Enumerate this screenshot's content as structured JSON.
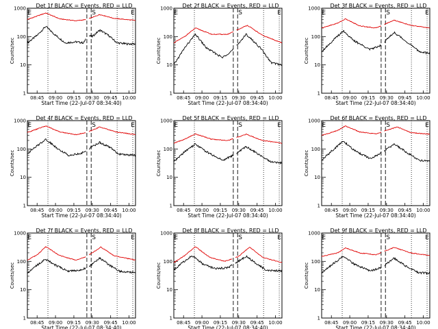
{
  "chart_data": [
    {
      "type": "line",
      "title": "Det 1f BLACK = Events, RED = LLD",
      "xlabel": "Start Time (22-Jul-07 08:34:40)",
      "ylabel": "Counts/sec",
      "x_ticks": [
        "08:45",
        "09:00",
        "09:15",
        "09:30",
        "09:45",
        "10:00"
      ],
      "y_ticks": [
        "1",
        "10",
        "100",
        "1000"
      ],
      "ylim": [
        1,
        1000
      ],
      "yscale": "log",
      "markers": [
        "E",
        "S",
        "E"
      ],
      "grid": false,
      "series": [
        {
          "name": "BLACK",
          "color": "#000000",
          "key": [
            [
              0,
              60
            ],
            [
              0.09,
              110
            ],
            [
              0.17,
              230
            ],
            [
              0.25,
              120
            ],
            [
              0.35,
              60
            ],
            [
              0.45,
              65
            ],
            [
              0.52,
              60
            ],
            [
              0.56,
              110
            ],
            [
              0.6,
              100
            ],
            [
              0.67,
              170
            ],
            [
              0.75,
              110
            ],
            [
              0.83,
              60
            ],
            [
              0.92,
              55
            ],
            [
              1,
              55
            ]
          ],
          "gap": [
            0.54,
            0.57
          ]
        },
        {
          "name": "RED",
          "color": "#e00000",
          "key": [
            [
              0,
              400
            ],
            [
              0.17,
              680
            ],
            [
              0.3,
              420
            ],
            [
              0.45,
              360
            ],
            [
              0.55,
              400
            ],
            [
              0.67,
              600
            ],
            [
              0.8,
              440
            ],
            [
              1,
              370
            ]
          ],
          "gap": [
            0.54,
            0.57
          ]
        }
      ]
    },
    {
      "type": "line",
      "title": "Det 2f BLACK = Events, RED = LLD",
      "xlabel": "Start Time (22-Jul-07 08:34:40)",
      "ylabel": "Counts/sec",
      "x_ticks": [
        "08:45",
        "09:00",
        "09:15",
        "09:30",
        "09:45",
        "10:00"
      ],
      "y_ticks": [
        "1",
        "10",
        "100",
        "1000"
      ],
      "ylim": [
        1,
        1000
      ],
      "yscale": "log",
      "markers": [
        "E",
        "S",
        "E"
      ],
      "grid": false,
      "series": [
        {
          "name": "BLACK",
          "color": "#000000",
          "key": [
            [
              0,
              10
            ],
            [
              0.1,
              40
            ],
            [
              0.2,
              120
            ],
            [
              0.3,
              40
            ],
            [
              0.45,
              18
            ],
            [
              0.55,
              35
            ],
            [
              0.67,
              120
            ],
            [
              0.8,
              40
            ],
            [
              0.9,
              12
            ],
            [
              1,
              10
            ]
          ],
          "gap": [
            0.55,
            0.58
          ]
        },
        {
          "name": "RED",
          "color": "#e00000",
          "key": [
            [
              0,
              60
            ],
            [
              0.1,
              100
            ],
            [
              0.2,
              200
            ],
            [
              0.35,
              120
            ],
            [
              0.5,
              120
            ],
            [
              0.68,
              250
            ],
            [
              0.82,
              110
            ],
            [
              1,
              60
            ]
          ],
          "gap": [
            0.55,
            0.58
          ]
        }
      ]
    },
    {
      "type": "line",
      "title": "Det 3f BLACK = Events, RED = LLD",
      "xlabel": "Start Time (22-Jul-07 08:34:40)",
      "ylabel": "Counts/sec",
      "x_ticks": [
        "08:45",
        "09:00",
        "09:15",
        "09:30",
        "09:45",
        "10:00"
      ],
      "y_ticks": [
        "1",
        "10",
        "100",
        "1000"
      ],
      "ylim": [
        1,
        1000
      ],
      "yscale": "log",
      "markers": [
        "E",
        "S",
        "E"
      ],
      "grid": false,
      "series": [
        {
          "name": "BLACK",
          "color": "#000000",
          "key": [
            [
              0,
              30
            ],
            [
              0.1,
              70
            ],
            [
              0.2,
              160
            ],
            [
              0.3,
              70
            ],
            [
              0.45,
              35
            ],
            [
              0.55,
              50
            ],
            [
              0.67,
              140
            ],
            [
              0.8,
              60
            ],
            [
              0.9,
              30
            ],
            [
              1,
              25
            ]
          ],
          "gap": [
            0.55,
            0.58
          ]
        },
        {
          "name": "RED",
          "color": "#e00000",
          "key": [
            [
              0,
              200
            ],
            [
              0.15,
              300
            ],
            [
              0.22,
              420
            ],
            [
              0.35,
              240
            ],
            [
              0.5,
              200
            ],
            [
              0.67,
              380
            ],
            [
              0.82,
              250
            ],
            [
              1,
              200
            ]
          ],
          "gap": [
            0.55,
            0.58
          ]
        }
      ]
    },
    {
      "type": "line",
      "title": "Det 4f BLACK = Events, RED = LLD",
      "xlabel": "Start Time (22-Jul-07 08:34:40)",
      "ylabel": "Counts/sec",
      "x_ticks": [
        "08:45",
        "09:00",
        "09:15",
        "09:30",
        "09:45",
        "10:00"
      ],
      "y_ticks": [
        "1",
        "10",
        "100",
        "1000"
      ],
      "ylim": [
        1,
        1000
      ],
      "yscale": "log",
      "markers": [
        "E",
        "S",
        "E"
      ],
      "grid": false,
      "series": [
        {
          "name": "BLACK",
          "color": "#000000",
          "key": [
            [
              0,
              70
            ],
            [
              0.08,
              120
            ],
            [
              0.17,
              220
            ],
            [
              0.27,
              110
            ],
            [
              0.38,
              60
            ],
            [
              0.5,
              70
            ],
            [
              0.58,
              110
            ],
            [
              0.67,
              170
            ],
            [
              0.77,
              110
            ],
            [
              0.85,
              65
            ],
            [
              1,
              60
            ]
          ],
          "gap": [
            0.54,
            0.57
          ]
        },
        {
          "name": "RED",
          "color": "#e00000",
          "key": [
            [
              0,
              380
            ],
            [
              0.17,
              650
            ],
            [
              0.3,
              400
            ],
            [
              0.45,
              320
            ],
            [
              0.55,
              380
            ],
            [
              0.67,
              600
            ],
            [
              0.82,
              400
            ],
            [
              1,
              320
            ]
          ],
          "gap": [
            0.54,
            0.57
          ]
        }
      ]
    },
    {
      "type": "line",
      "title": "Det 5f BLACK = Events, RED = LLD",
      "xlabel": "Start Time (22-Jul-07 08:34:40)",
      "ylabel": "Counts/sec",
      "x_ticks": [
        "08:45",
        "09:00",
        "09:15",
        "09:30",
        "09:45",
        "10:00"
      ],
      "y_ticks": [
        "1",
        "10",
        "100",
        "1000"
      ],
      "ylim": [
        1,
        1000
      ],
      "yscale": "log",
      "markers": [
        "E",
        "S",
        "E"
      ],
      "grid": false,
      "series": [
        {
          "name": "BLACK",
          "color": "#000000",
          "key": [
            [
              0,
              35
            ],
            [
              0.1,
              80
            ],
            [
              0.2,
              150
            ],
            [
              0.3,
              80
            ],
            [
              0.45,
              40
            ],
            [
              0.55,
              60
            ],
            [
              0.67,
              120
            ],
            [
              0.8,
              60
            ],
            [
              0.9,
              35
            ],
            [
              1,
              32
            ]
          ],
          "gap": [
            0.55,
            0.58
          ]
        },
        {
          "name": "RED",
          "color": "#e00000",
          "key": [
            [
              0,
              160
            ],
            [
              0.1,
              220
            ],
            [
              0.2,
              340
            ],
            [
              0.35,
              220
            ],
            [
              0.5,
              200
            ],
            [
              0.67,
              330
            ],
            [
              0.82,
              200
            ],
            [
              1,
              160
            ]
          ],
          "gap": [
            0.55,
            0.58
          ]
        }
      ]
    },
    {
      "type": "line",
      "title": "Det 6f BLACK = Events, RED = LLD",
      "xlabel": "Start Time (22-Jul-07 08:34:40)",
      "ylabel": "Counts/sec",
      "x_ticks": [
        "08:45",
        "09:00",
        "09:15",
        "09:30",
        "09:45",
        "10:00"
      ],
      "y_ticks": [
        "1",
        "10",
        "100",
        "1000"
      ],
      "ylim": [
        1,
        1000
      ],
      "yscale": "log",
      "markers": [
        "E",
        "S",
        "E"
      ],
      "grid": false,
      "series": [
        {
          "name": "BLACK",
          "color": "#000000",
          "key": [
            [
              0,
              40
            ],
            [
              0.1,
              90
            ],
            [
              0.2,
              190
            ],
            [
              0.3,
              90
            ],
            [
              0.45,
              45
            ],
            [
              0.55,
              70
            ],
            [
              0.67,
              150
            ],
            [
              0.8,
              70
            ],
            [
              0.9,
              40
            ],
            [
              1,
              38
            ]
          ],
          "gap": [
            0.55,
            0.58
          ]
        },
        {
          "name": "RED",
          "color": "#e00000",
          "key": [
            [
              0,
              300
            ],
            [
              0.15,
              450
            ],
            [
              0.22,
              650
            ],
            [
              0.35,
              400
            ],
            [
              0.5,
              340
            ],
            [
              0.7,
              600
            ],
            [
              0.82,
              380
            ],
            [
              1,
              330
            ]
          ],
          "gap": [
            0.55,
            0.58
          ]
        }
      ]
    },
    {
      "type": "line",
      "title": "Det 7f BLACK = Events, RED = LLD",
      "xlabel": "Start Time (22-Jul-07 08:34:40)",
      "ylabel": "Counts/sec",
      "x_ticks": [
        "08:45",
        "09:00",
        "09:15",
        "09:30",
        "09:45",
        "10:00"
      ],
      "y_ticks": [
        "1",
        "10",
        "100",
        "1000"
      ],
      "ylim": [
        1,
        1000
      ],
      "yscale": "log",
      "markers": [
        "E",
        "S",
        "E"
      ],
      "grid": false,
      "series": [
        {
          "name": "BLACK",
          "color": "#000000",
          "key": [
            [
              0,
              40
            ],
            [
              0.08,
              70
            ],
            [
              0.17,
              120
            ],
            [
              0.27,
              70
            ],
            [
              0.38,
              45
            ],
            [
              0.5,
              50
            ],
            [
              0.58,
              70
            ],
            [
              0.67,
              130
            ],
            [
              0.77,
              70
            ],
            [
              0.85,
              45
            ],
            [
              1,
              40
            ]
          ],
          "gap": [
            0.54,
            0.57
          ]
        },
        {
          "name": "RED",
          "color": "#e00000",
          "key": [
            [
              0,
              110
            ],
            [
              0.1,
              180
            ],
            [
              0.17,
              330
            ],
            [
              0.3,
              160
            ],
            [
              0.45,
              110
            ],
            [
              0.55,
              150
            ],
            [
              0.68,
              320
            ],
            [
              0.8,
              160
            ],
            [
              1,
              110
            ]
          ],
          "gap": [
            0.54,
            0.57
          ]
        }
      ]
    },
    {
      "type": "line",
      "title": "Det 8f BLACK = Events, RED = LLD",
      "xlabel": "Start Time (22-Jul-07 08:34:40)",
      "ylabel": "Counts/sec",
      "x_ticks": [
        "08:45",
        "09:00",
        "09:15",
        "09:30",
        "09:45",
        "10:00"
      ],
      "y_ticks": [
        "1",
        "10",
        "100",
        "1000"
      ],
      "ylim": [
        1,
        1000
      ],
      "yscale": "log",
      "markers": [
        "E",
        "S",
        "E"
      ],
      "grid": false,
      "series": [
        {
          "name": "BLACK",
          "color": "#000000",
          "key": [
            [
              0,
              50
            ],
            [
              0.08,
              90
            ],
            [
              0.17,
              160
            ],
            [
              0.27,
              80
            ],
            [
              0.38,
              55
            ],
            [
              0.5,
              60
            ],
            [
              0.58,
              90
            ],
            [
              0.67,
              150
            ],
            [
              0.77,
              80
            ],
            [
              0.85,
              50
            ],
            [
              1,
              45
            ]
          ],
          "gap": [
            0.54,
            0.57
          ]
        },
        {
          "name": "RED",
          "color": "#e00000",
          "key": [
            [
              0,
              90
            ],
            [
              0.1,
              160
            ],
            [
              0.2,
              330
            ],
            [
              0.33,
              140
            ],
            [
              0.47,
              100
            ],
            [
              0.6,
              150
            ],
            [
              0.7,
              320
            ],
            [
              0.82,
              140
            ],
            [
              1,
              90
            ]
          ],
          "gap": [
            0.54,
            0.57
          ]
        }
      ]
    },
    {
      "type": "line",
      "title": "Det 9f BLACK = Events, RED = LLD",
      "xlabel": "Start Time (22-Jul-07 08:34:40)",
      "ylabel": "Counts/sec",
      "x_ticks": [
        "08:45",
        "09:00",
        "09:15",
        "09:30",
        "09:45",
        "10:00"
      ],
      "y_ticks": [
        "1",
        "10",
        "100",
        "1000"
      ],
      "ylim": [
        1,
        1000
      ],
      "yscale": "log",
      "markers": [
        "E",
        "S",
        "E"
      ],
      "grid": false,
      "series": [
        {
          "name": "BLACK",
          "color": "#000000",
          "key": [
            [
              0,
              40
            ],
            [
              0.1,
              80
            ],
            [
              0.2,
              150
            ],
            [
              0.3,
              80
            ],
            [
              0.45,
              45
            ],
            [
              0.55,
              60
            ],
            [
              0.67,
              130
            ],
            [
              0.8,
              60
            ],
            [
              0.9,
              40
            ],
            [
              1,
              38
            ]
          ],
          "gap": [
            0.55,
            0.58
          ]
        },
        {
          "name": "RED",
          "color": "#e00000",
          "key": [
            [
              0,
              150
            ],
            [
              0.15,
              200
            ],
            [
              0.22,
              300
            ],
            [
              0.35,
              200
            ],
            [
              0.5,
              170
            ],
            [
              0.67,
              310
            ],
            [
              0.82,
              200
            ],
            [
              1,
              160
            ]
          ],
          "gap": [
            0.55,
            0.58
          ]
        }
      ]
    }
  ]
}
